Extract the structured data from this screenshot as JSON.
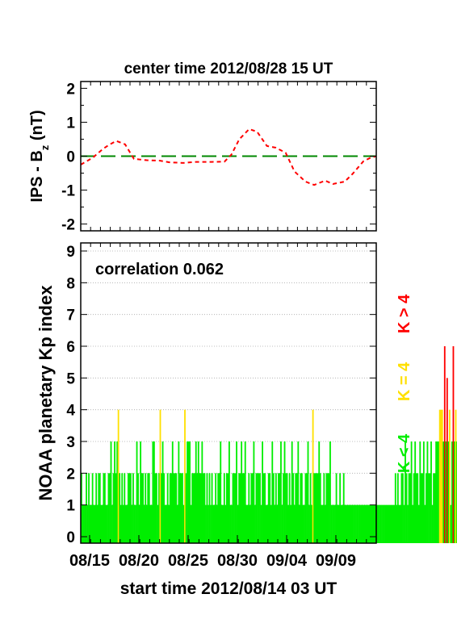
{
  "title": "center time 2012/08/28 15 UT",
  "footer": "start time 2012/08/14 03 UT",
  "colors": {
    "red": "#ff0000",
    "yellow": "#ffe000",
    "green": "#00ee00",
    "zero_line": "#008800",
    "grid": "#aaaaaa"
  },
  "chart_data": [
    {
      "type": "line",
      "ylabel_main": "IPS - B",
      "ylabel_sub": "z",
      "ylabel_unit": " (nT)",
      "ylim": [
        -2.2,
        2.2
      ],
      "yticks": [
        -2,
        -1,
        0,
        1,
        2
      ],
      "ytick_labels": [
        "-2",
        "-1",
        "0",
        "1",
        "2"
      ],
      "xlim": [
        0,
        30
      ],
      "zero_line": 0,
      "series": [
        {
          "line_style": "dashed",
          "color": "#ff0000",
          "x": [
            0,
            1.2,
            2.2,
            2.8,
            3.6,
            4.5,
            5.4,
            6.7,
            8.0,
            9.0,
            10.4,
            11.7,
            13.3,
            14.6,
            15.3,
            16.1,
            17.1,
            17.9,
            18.9,
            19.8,
            20.8,
            21.7,
            22.8,
            23.7,
            24.8,
            25.6,
            26.8,
            27.6,
            28.7,
            29.4,
            30
          ],
          "y": [
            -0.25,
            -0.05,
            0.2,
            0.32,
            0.45,
            0.35,
            -0.08,
            -0.12,
            -0.13,
            -0.18,
            -0.2,
            -0.17,
            -0.17,
            -0.16,
            0.05,
            0.5,
            0.8,
            0.72,
            0.3,
            0.25,
            0.1,
            -0.45,
            -0.75,
            -0.85,
            -0.72,
            -0.82,
            -0.75,
            -0.52,
            -0.15,
            -0.05,
            0.0
          ]
        }
      ]
    },
    {
      "type": "bar",
      "ylabel": "NOAA planetary Kp index",
      "ylim": [
        0,
        9
      ],
      "yticks": [
        0,
        1,
        2,
        3,
        4,
        5,
        6,
        7,
        8,
        9
      ],
      "ytick_labels": [
        "0",
        "1",
        "2",
        "3",
        "4",
        "5",
        "6",
        "7",
        "8",
        "9"
      ],
      "xlim": [
        0,
        30
      ],
      "xtick_labels": [
        "08/15",
        "08/20",
        "08/25",
        "08/30",
        "09/04",
        "09/09"
      ],
      "xtick_values": [
        0.9,
        5.9,
        10.9,
        15.9,
        20.9,
        25.9
      ],
      "grid": "horizontal dotted",
      "annotation": "correlation 0.062",
      "legend": [
        "K < 4",
        "K = 4",
        "K > 4"
      ],
      "legend_colors": [
        "#00ee00",
        "#ffe000",
        "#ff0000"
      ],
      "bar_interval_days": 0.125,
      "values": [
        2,
        1,
        1,
        1,
        2,
        1,
        2,
        1,
        1,
        2,
        1,
        1,
        2,
        1,
        2,
        2,
        1,
        1,
        2,
        2,
        1,
        1,
        2,
        2,
        3,
        1,
        2,
        3,
        2,
        3,
        4,
        2,
        1,
        2,
        1,
        2,
        1,
        1,
        2,
        2,
        2,
        1,
        2,
        1,
        1,
        3,
        2,
        1,
        3,
        2,
        2,
        1,
        2,
        1,
        2,
        2,
        1,
        1,
        3,
        3,
        2,
        2,
        1,
        2,
        4,
        2,
        3,
        2,
        1,
        1,
        2,
        1,
        2,
        2,
        3,
        2,
        2,
        2,
        1,
        3,
        2,
        2,
        2,
        1,
        4,
        2,
        3,
        3,
        3,
        1,
        2,
        2,
        2,
        3,
        2,
        3,
        2,
        2,
        3,
        2,
        2,
        1,
        2,
        1,
        2,
        1,
        2,
        1,
        1,
        2,
        1,
        2,
        2,
        3,
        1,
        1,
        2,
        1,
        2,
        2,
        3,
        1,
        1,
        2,
        2,
        2,
        3,
        1,
        2,
        2,
        3,
        2,
        2,
        3,
        1,
        1,
        2,
        1,
        2,
        2,
        3,
        1,
        2,
        2,
        2,
        2,
        1,
        3,
        2,
        2,
        1,
        1,
        2,
        2,
        1,
        3,
        2,
        1,
        2,
        1,
        2,
        2,
        3,
        1,
        2,
        3,
        2,
        2,
        1,
        2,
        1,
        3,
        2,
        1,
        2,
        2,
        3,
        1,
        2,
        2,
        1,
        1,
        2,
        2,
        3,
        1,
        2,
        1,
        4,
        2,
        2,
        2,
        2,
        3,
        2,
        1,
        1,
        2,
        1,
        2,
        2,
        2,
        3,
        1,
        1,
        1,
        1,
        2,
        1,
        1,
        2,
        1,
        1,
        2,
        1,
        1,
        1,
        1,
        1,
        1,
        1,
        1,
        1,
        1,
        1,
        1,
        1,
        1,
        1,
        1,
        1,
        1,
        1,
        1,
        1,
        1,
        1,
        1,
        1,
        1,
        1,
        1,
        1,
        1,
        1,
        1,
        1,
        1,
        1,
        1,
        1,
        1,
        1,
        1,
        1,
        2,
        1,
        2,
        1,
        1,
        2,
        2,
        1,
        3,
        2,
        1,
        2,
        2,
        3,
        1,
        2,
        3,
        2,
        2,
        1,
        3,
        2,
        2,
        3,
        1,
        2,
        3,
        2,
        2,
        3,
        1,
        2,
        2,
        3,
        3,
        3,
        4,
        4,
        4,
        3,
        6,
        3,
        5,
        3,
        4,
        1,
        3,
        6,
        3,
        4,
        3,
        2,
        1,
        2,
        3,
        3,
        4,
        2,
        1,
        3,
        2,
        2,
        1,
        2,
        2,
        1,
        3,
        2,
        1,
        2,
        2,
        1,
        1,
        2,
        3,
        2,
        1,
        2,
        1,
        2,
        2,
        1,
        1,
        2,
        1,
        2,
        1,
        2,
        1,
        1,
        1,
        2,
        1,
        1,
        1,
        2,
        1,
        1,
        1,
        2,
        2,
        1,
        1,
        1,
        1,
        1
      ]
    }
  ]
}
